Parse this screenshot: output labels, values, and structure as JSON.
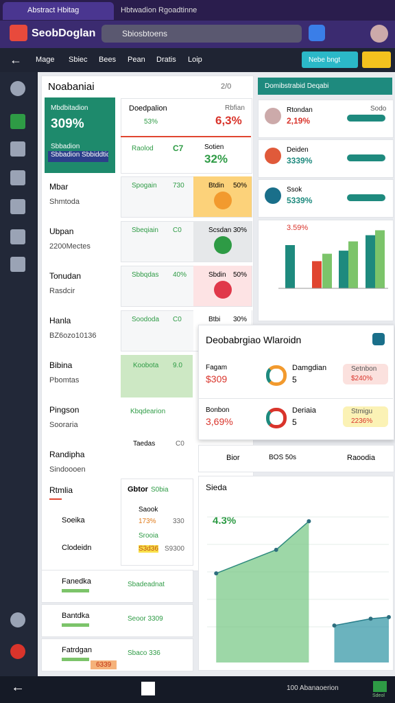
{
  "browser": {
    "tabs": [
      "Abstract Hbitag",
      "Hbtwadion Rgoadtinne"
    ]
  },
  "app": {
    "logo": "SeobDoglan",
    "search": "Sbiosbtoens"
  },
  "nav": {
    "items": [
      "Mage",
      "Sbiec",
      "Bees",
      "Pean",
      "Dratis",
      "Loip"
    ],
    "button": "Nebe bngt"
  },
  "list_panel": {
    "title": "Noabaniai",
    "page": "2/0",
    "highlight": {
      "label": "Mbdbitadion",
      "value": "309%",
      "sub": "Sbbadion",
      "button": "Sbbadion Sbbiddtion"
    },
    "rows": [
      {
        "title": "Mbar",
        "sub": "Shmtoda"
      },
      {
        "title": "Ubpan",
        "sub": "2200Mectes"
      },
      {
        "title": "Tonudan",
        "sub": "Rasdcir"
      },
      {
        "title": "Hanla",
        "sub": "BZ6ozo10136"
      },
      {
        "title": "Bibina",
        "sub": "Pbomtas"
      },
      {
        "title": "Pingson",
        "sub": "Sooraria"
      },
      {
        "title": "Randipha",
        "sub": "Sindoooen"
      }
    ],
    "last": "Rtmlia",
    "items": [
      "Soeika",
      "Clodeidn"
    ]
  },
  "stats": {
    "label": "Doedpalion",
    "note": "Rbfian",
    "value": "6,3%",
    "change": "53%",
    "label2": "Raolod",
    "code": "C7",
    "note2": "Sotien",
    "value2": "32%"
  },
  "tiles": [
    {
      "label": "Spogain",
      "value": "730",
      "side": "Btdin",
      "pct": "50%"
    },
    {
      "label": "Sbeqiain",
      "value": "C0",
      "side": "Scsdan",
      "pct": "30%"
    },
    {
      "label": "Sbbqdas",
      "value": "40%",
      "side": "Sbdin",
      "pct": "50%"
    },
    {
      "label": "Soododa",
      "value": "C0",
      "side": "Btbi",
      "pct": "30%"
    }
  ],
  "extra": {
    "green": "Koobota",
    "green_value": "9.0",
    "kb": "Kbqdearion",
    "taedas": "Taedas",
    "taedas_value": "C0",
    "box_title": "Gbtor",
    "box_value": "S0bia",
    "saook": "Saook",
    "pct": "173%",
    "num": "330",
    "srooia": "Srooia",
    "s1": "S3d36",
    "s2": "S9300"
  },
  "bottom_rows": [
    {
      "title": "Fanedka",
      "value": "Sbadeadnat"
    },
    {
      "title": "Bantdka",
      "value": "Seoor 3309"
    },
    {
      "title": "Fatrdgan",
      "value": "Sbaco 336"
    }
  ],
  "badge": "6339",
  "right": {
    "header": "Domibstrabid Deqabi",
    "cards": [
      {
        "title": "Rtondan",
        "value": "2,19%",
        "tag": "Sodo"
      },
      {
        "title": "Deiden",
        "value": "3339%"
      },
      {
        "title": "Ssok",
        "value": "5339%"
      }
    ],
    "bar_chart": {
      "value": "3.59%",
      "ylim": [
        0,
        100
      ],
      "bars": [
        {
          "color": "#1e8a7e",
          "value": 70
        },
        {
          "color": "#e04530",
          "value": 44
        },
        {
          "color": "#7cc46a",
          "value": 56
        },
        {
          "color": "#1e8a7e",
          "value": 61
        },
        {
          "color": "#7cc46a",
          "value": 76
        },
        {
          "color": "#1e8a7e",
          "value": 86
        },
        {
          "color": "#7cc46a",
          "value": 94
        }
      ]
    }
  },
  "popup": {
    "title": "Deobabrgiao Wlaroidn",
    "rows": [
      {
        "label": "Fagam",
        "value": "$309",
        "name": "Damgdian",
        "count": "5",
        "tag": "Setnbon",
        "tag_value": "$240%"
      },
      {
        "label": "Bonbon",
        "value": "3,69%",
        "name": "Deriaia",
        "count": "5",
        "tag": "Stmigu",
        "tag_value": "2236%"
      }
    ]
  },
  "strip": {
    "a": "Bior",
    "b": "BOS 50s",
    "c": "Raoodia"
  },
  "area_chart": {
    "title": "Sieda",
    "value": "4.3%",
    "xlim": [
      0,
      100
    ],
    "ylim": [
      0,
      100
    ],
    "series": [
      {
        "color": "#7cc98a",
        "x": [
          5,
          38,
          56
        ],
        "values": [
          53,
          67,
          84
        ]
      },
      {
        "color": "#3a9aa8",
        "x": [
          70,
          90,
          100
        ],
        "values": [
          22,
          26,
          27
        ]
      }
    ]
  },
  "taskbar": {
    "app": "Sdeol",
    "status": "100 Abanaoerion"
  }
}
